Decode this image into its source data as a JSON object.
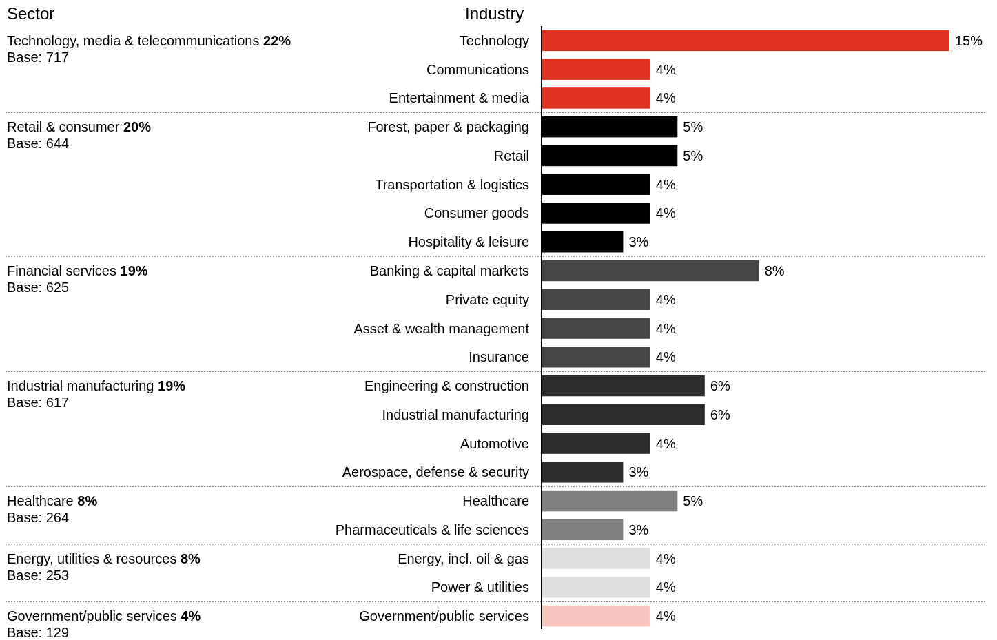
{
  "chart_data": {
    "type": "bar",
    "orientation": "horizontal",
    "ylabel": "Industry",
    "categories": [
      "Technology",
      "Communications",
      "Entertainment & media",
      "Forest, paper & packaging",
      "Retail",
      "Transportation & logistics",
      "Consumer goods",
      "Hospitality & leisure",
      "Banking & capital markets",
      "Private equity",
      "Asset & wealth management",
      "Insurance",
      "Engineering & construction",
      "Industrial manufacturing",
      "Automotive",
      "Aerospace, defense & security",
      "Healthcare",
      "Pharmaceuticals & life sciences",
      "Energy, incl. oil & gas",
      "Power & utilities",
      "Government/public services"
    ],
    "values": [
      15,
      4,
      4,
      5,
      5,
      4,
      4,
      3,
      8,
      4,
      4,
      4,
      6,
      6,
      4,
      3,
      5,
      3,
      4,
      4,
      4
    ],
    "value_labels": [
      "15%",
      "4%",
      "4%",
      "5%",
      "5%",
      "4%",
      "4%",
      "3%",
      "8%",
      "4%",
      "4%",
      "4%",
      "6%",
      "6%",
      "4%",
      "3%",
      "5%",
      "3%",
      "4%",
      "4%",
      "4%"
    ],
    "colors": [
      "#e03220",
      "#e03220",
      "#e03220",
      "#000000",
      "#000000",
      "#000000",
      "#000000",
      "#000000",
      "#464646",
      "#464646",
      "#464646",
      "#464646",
      "#2d2d2d",
      "#2d2d2d",
      "#2d2d2d",
      "#2d2d2d",
      "#7f7f7f",
      "#7f7f7f",
      "#dedede",
      "#dedede",
      "#f7c6c0"
    ],
    "annotations": [
      "Sector",
      "Technology, media & telecommunications 22%",
      "Base: 717",
      "Retail & consumer 20%",
      "Base: 644",
      "Financial services 19%",
      "Base: 625",
      "Industrial manufacturing 19%",
      "Base: 617",
      "Healthcare 8%",
      "Base: 264",
      "Energy, utilities & resources 8%",
      "Base: 253",
      "Government/public services 4%",
      "Base: 129"
    ]
  }
}
